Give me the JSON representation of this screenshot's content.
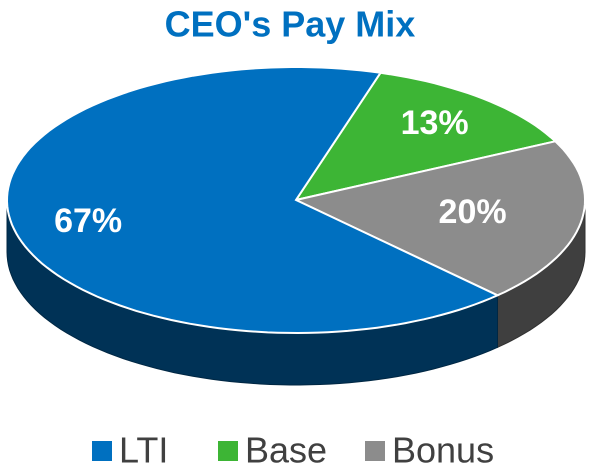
{
  "chart_data": {
    "type": "pie",
    "title": "CEO's Pay Mix",
    "categories": [
      "LTI",
      "Base",
      "Bonus"
    ],
    "values": [
      67,
      13,
      20
    ],
    "value_labels": [
      "67%",
      "13%",
      "20%"
    ],
    "colors": [
      "#0070c0",
      "#3db535",
      "#8c8c8c"
    ],
    "legend": "bottom"
  }
}
